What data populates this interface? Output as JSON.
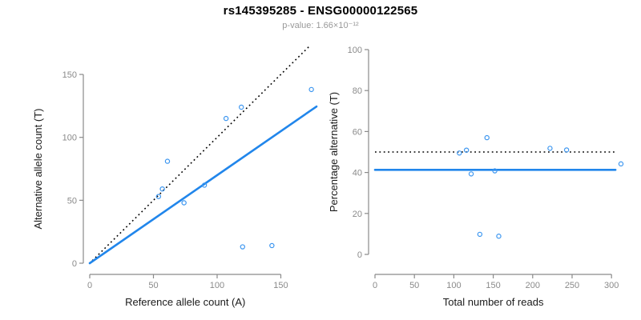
{
  "title": "rs145395285 - ENSG00000122565",
  "subtitle": "p-value: 1.66×10⁻¹²",
  "colors": {
    "line_blue": "#2186EB",
    "point_blue": "#3C96F0",
    "dotted_black": "#000000",
    "axis_gray": "#8a8a8a",
    "tick_text_gray": "#8a8a8a",
    "axis_title_color": "#1a1a1a",
    "subtitle_gray": "#999999",
    "title_color": "#000000"
  },
  "chart_data": [
    {
      "type": "scatter",
      "name": "allele-count-plot",
      "xlabel": "Reference allele count (A)",
      "ylabel": "Alternative allele count (T)",
      "xticks": [
        0,
        50,
        100,
        150
      ],
      "yticks": [
        0,
        50,
        100,
        150
      ],
      "xlim": [
        0,
        178
      ],
      "ylim": [
        0,
        178
      ],
      "grid": false,
      "points": [
        [
          54,
          53
        ],
        [
          57,
          59
        ],
        [
          61,
          81
        ],
        [
          74,
          48
        ],
        [
          90,
          62
        ],
        [
          107,
          115
        ],
        [
          119,
          124
        ],
        [
          120,
          13
        ],
        [
          143,
          14
        ],
        [
          174,
          138
        ]
      ],
      "lines": [
        {
          "name": "identity-line",
          "style": "dotted",
          "color": "#000000",
          "from": [
            2,
            2
          ],
          "to": [
            172,
            172
          ]
        },
        {
          "name": "regression-line",
          "style": "solid",
          "color": "#2186EB",
          "from": [
            0,
            0
          ],
          "to": [
            178,
            124.5
          ]
        }
      ]
    },
    {
      "type": "scatter",
      "name": "percentage-reads-plot",
      "xlabel": "Total number of reads",
      "ylabel": "Percentage alternative (T)",
      "xticks": [
        0,
        50,
        100,
        150,
        200,
        250,
        300
      ],
      "yticks": [
        0,
        20,
        40,
        60,
        80,
        100
      ],
      "xlim": [
        0,
        312
      ],
      "ylim": [
        0,
        100
      ],
      "grid": false,
      "points": [
        [
          107,
          49.5
        ],
        [
          116,
          50.9
        ],
        [
          142,
          57.0
        ],
        [
          122,
          39.3
        ],
        [
          152,
          40.8
        ],
        [
          222,
          51.8
        ],
        [
          243,
          51.0
        ],
        [
          133,
          9.8
        ],
        [
          157,
          8.9
        ],
        [
          312,
          44.2
        ]
      ],
      "lines": [
        {
          "name": "expected-50-percent-line",
          "style": "dotted",
          "color": "#000000",
          "from": [
            0,
            50
          ],
          "to": [
            305,
            50
          ]
        },
        {
          "name": "fitted-percentage-line",
          "style": "solid",
          "color": "#2186EB",
          "from": [
            0,
            41.3
          ],
          "to": [
            305,
            41.3
          ]
        }
      ]
    }
  ]
}
